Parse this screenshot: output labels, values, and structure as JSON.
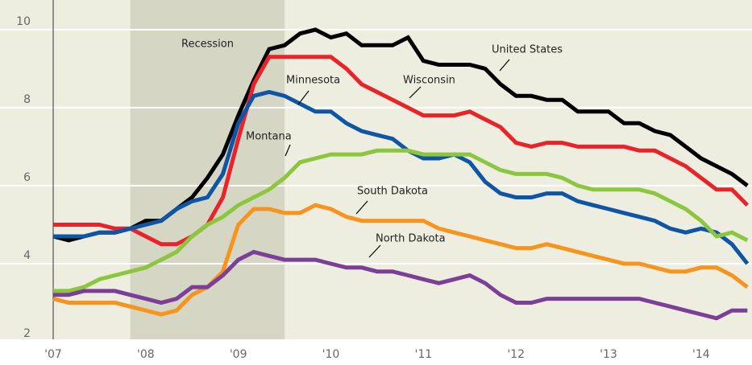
{
  "chart_data": {
    "type": "line",
    "xlim": [
      2007,
      2014.55
    ],
    "xticks": [
      {
        "value": 2007,
        "label": "'07"
      },
      {
        "value": 2008,
        "label": "'08"
      },
      {
        "value": 2009,
        "label": "'09"
      },
      {
        "value": 2010,
        "label": "'10"
      },
      {
        "value": 2011,
        "label": "'11"
      },
      {
        "value": 2012,
        "label": "'12"
      },
      {
        "value": 2013,
        "label": "'13"
      },
      {
        "value": 2014,
        "label": "'14"
      }
    ],
    "ylim": [
      2,
      10.76
    ],
    "yticks": [
      2,
      4,
      6,
      8,
      10
    ],
    "grid": true,
    "recession": {
      "label": "Recession",
      "x": [
        2007.833,
        2009.5
      ]
    },
    "x": [
      2007,
      2007.167,
      2007.333,
      2007.5,
      2007.667,
      2007.833,
      2008,
      2008.167,
      2008.333,
      2008.5,
      2008.667,
      2008.833,
      2009,
      2009.167,
      2009.333,
      2009.5,
      2009.667,
      2009.833,
      2010,
      2010.167,
      2010.333,
      2010.5,
      2010.667,
      2010.833,
      2011,
      2011.167,
      2011.333,
      2011.5,
      2011.667,
      2011.833,
      2012,
      2012.167,
      2012.333,
      2012.5,
      2012.667,
      2012.833,
      2013,
      2013.167,
      2013.333,
      2013.5,
      2013.667,
      2013.833,
      2014,
      2014.167,
      2014.333,
      2014.5
    ],
    "series": [
      {
        "name": "United States",
        "color": "#000000",
        "values": [
          4.7,
          4.6,
          4.7,
          4.8,
          4.8,
          4.9,
          5.1,
          5.1,
          5.4,
          5.7,
          6.2,
          6.8,
          7.8,
          8.7,
          9.5,
          9.6,
          9.9,
          10.0,
          9.8,
          9.9,
          9.6,
          9.6,
          9.6,
          9.8,
          9.2,
          9.1,
          9.1,
          9.1,
          9.0,
          8.6,
          8.3,
          8.3,
          8.2,
          8.2,
          7.9,
          7.9,
          7.9,
          7.6,
          7.6,
          7.4,
          7.3,
          7.0,
          6.7,
          6.5,
          6.3,
          6.0
        ]
      },
      {
        "name": "Wisconsin",
        "color": "#e8242a",
        "values": [
          5.0,
          5.0,
          5.0,
          5.0,
          4.9,
          4.9,
          4.7,
          4.5,
          4.5,
          4.7,
          5.0,
          5.7,
          7.2,
          8.6,
          9.3,
          9.3,
          9.3,
          9.3,
          9.3,
          9.0,
          8.6,
          8.4,
          8.2,
          8.0,
          7.8,
          7.8,
          7.8,
          7.9,
          7.7,
          7.5,
          7.1,
          7.0,
          7.1,
          7.1,
          7.0,
          7.0,
          7.0,
          7.0,
          6.9,
          6.9,
          6.7,
          6.5,
          6.2,
          5.9,
          5.9,
          5.5
        ]
      },
      {
        "name": "Minnesota",
        "color": "#0e55a5",
        "values": [
          4.7,
          4.7,
          4.7,
          4.8,
          4.8,
          4.9,
          5.0,
          5.1,
          5.4,
          5.6,
          5.7,
          6.3,
          7.6,
          8.3,
          8.4,
          8.3,
          8.1,
          7.9,
          7.9,
          7.6,
          7.4,
          7.3,
          7.2,
          6.9,
          6.7,
          6.7,
          6.8,
          6.6,
          6.1,
          5.8,
          5.7,
          5.7,
          5.8,
          5.8,
          5.6,
          5.5,
          5.4,
          5.3,
          5.2,
          5.1,
          4.9,
          4.8,
          4.9,
          4.8,
          4.5,
          4.0
        ]
      },
      {
        "name": "Montana",
        "color": "#8cc63f",
        "values": [
          3.3,
          3.3,
          3.4,
          3.6,
          3.7,
          3.8,
          3.9,
          4.1,
          4.3,
          4.7,
          5.0,
          5.2,
          5.5,
          5.7,
          5.9,
          6.2,
          6.6,
          6.7,
          6.8,
          6.8,
          6.8,
          6.9,
          6.9,
          6.9,
          6.8,
          6.8,
          6.8,
          6.8,
          6.6,
          6.4,
          6.3,
          6.3,
          6.3,
          6.2,
          6.0,
          5.9,
          5.9,
          5.9,
          5.9,
          5.8,
          5.6,
          5.4,
          5.1,
          4.7,
          4.8,
          4.6
        ]
      },
      {
        "name": "South Dakota",
        "color": "#f7941d",
        "values": [
          3.1,
          3.0,
          3.0,
          3.0,
          3.0,
          2.9,
          2.8,
          2.7,
          2.8,
          3.2,
          3.4,
          3.8,
          5.0,
          5.4,
          5.4,
          5.3,
          5.3,
          5.5,
          5.4,
          5.2,
          5.1,
          5.1,
          5.1,
          5.1,
          5.1,
          4.9,
          4.8,
          4.7,
          4.6,
          4.5,
          4.4,
          4.4,
          4.5,
          4.4,
          4.3,
          4.2,
          4.1,
          4.0,
          4.0,
          3.9,
          3.8,
          3.8,
          3.9,
          3.9,
          3.7,
          3.4
        ]
      },
      {
        "name": "North Dakota",
        "color": "#7b3f98",
        "values": [
          3.2,
          3.2,
          3.3,
          3.3,
          3.3,
          3.2,
          3.1,
          3.0,
          3.1,
          3.4,
          3.4,
          3.7,
          4.1,
          4.3,
          4.2,
          4.1,
          4.1,
          4.1,
          4.0,
          3.9,
          3.9,
          3.8,
          3.8,
          3.7,
          3.6,
          3.5,
          3.6,
          3.7,
          3.5,
          3.2,
          3.0,
          3.0,
          3.1,
          3.1,
          3.1,
          3.1,
          3.1,
          3.1,
          3.1,
          3.0,
          2.9,
          2.8,
          2.7,
          2.6,
          2.8,
          2.8
        ]
      }
    ]
  }
}
